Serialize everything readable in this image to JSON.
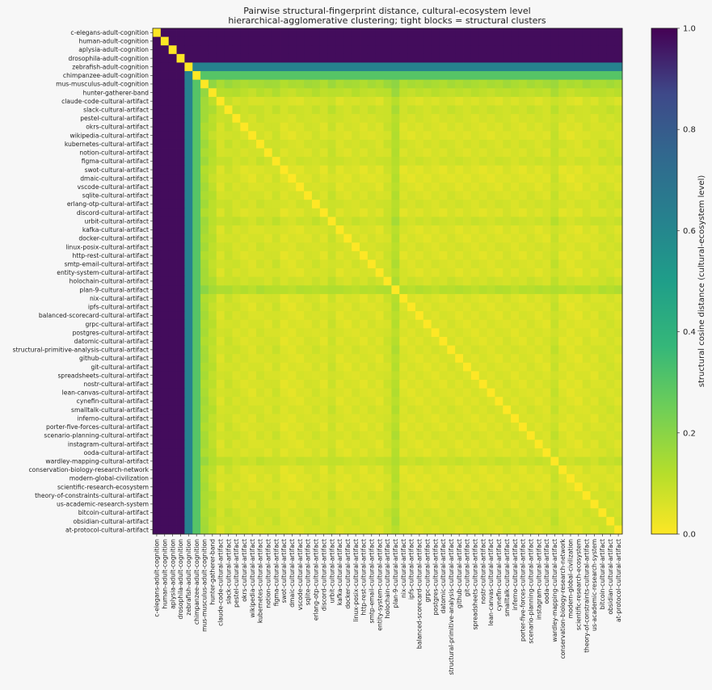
{
  "chart_data": {
    "type": "heatmap",
    "title": "Pairwise structural-fingerprint distance, cultural-ecosystem level",
    "subtitle": "hierarchical-agglomerative clustering; tight blocks = structural clusters",
    "colorbar": {
      "label": "structural cosine distance (cultural-ecosystem level)",
      "range": [
        0.0,
        1.0
      ],
      "ticks": [
        "0.0",
        "0.2",
        "0.4",
        "0.6",
        "0.8",
        "1.0"
      ],
      "colormap": "viridis_r"
    },
    "labels": [
      "c-elegans-adult-cognition",
      "human-adult-cognition",
      "aplysia-adult-cognition",
      "drosophila-adult-cognition",
      "zebrafish-adult-cognition",
      "chimpanzee-adult-cognition",
      "mus-musculus-adult-cognition",
      "hunter-gatherer-band",
      "claude-code-cultural-artifact",
      "slack-cultural-artifact",
      "pestel-cultural-artifact",
      "okrs-cultural-artifact",
      "wikipedia-cultural-artifact",
      "kubernetes-cultural-artifact",
      "notion-cultural-artifact",
      "figma-cultural-artifact",
      "swot-cultural-artifact",
      "dmaic-cultural-artifact",
      "vscode-cultural-artifact",
      "sqlite-cultural-artifact",
      "erlang-otp-cultural-artifact",
      "discord-cultural-artifact",
      "urbit-cultural-artifact",
      "kafka-cultural-artifact",
      "docker-cultural-artifact",
      "linux-posix-cultural-artifact",
      "http-rest-cultural-artifact",
      "smtp-email-cultural-artifact",
      "entity-system-cultural-artifact",
      "holochain-cultural-artifact",
      "plan-9-cultural-artifact",
      "nix-cultural-artifact",
      "ipfs-cultural-artifact",
      "balanced-scorecard-cultural-artifact",
      "grpc-cultural-artifact",
      "postgres-cultural-artifact",
      "datomic-cultural-artifact",
      "structural-primitive-analysis-cultural-artifact",
      "github-cultural-artifact",
      "git-cultural-artifact",
      "spreadsheets-cultural-artifact",
      "nostr-cultural-artifact",
      "lean-canvas-cultural-artifact",
      "cynefin-cultural-artifact",
      "smalltalk-cultural-artifact",
      "inferno-cultural-artifact",
      "porter-five-forces-cultural-artifact",
      "scenario-planning-cultural-artifact",
      "instagram-cultural-artifact",
      "ooda-cultural-artifact",
      "wardley-mapping-cultural-artifact",
      "conservation-biology-research-network",
      "modern-global-civilization",
      "scientific-research-ecosystem",
      "theory-of-constraints-cultural-artifact",
      "us-academic-research-system",
      "bitcoin-cultural-artifact",
      "obsidian-cultural-artifact",
      "at-protocol-cultural-artifact"
    ],
    "row_profile": [
      0.98,
      0.98,
      0.98,
      0.98,
      0.62,
      0.3,
      0.18,
      0.12,
      0.05,
      0.08,
      0.06,
      0.05,
      0.04,
      0.06,
      0.05,
      0.07,
      0.03,
      0.03,
      0.04,
      0.05,
      0.06,
      0.04,
      0.08,
      0.04,
      0.04,
      0.05,
      0.04,
      0.05,
      0.04,
      0.07,
      0.14,
      0.04,
      0.04,
      0.04,
      0.04,
      0.04,
      0.04,
      0.05,
      0.04,
      0.04,
      0.04,
      0.04,
      0.04,
      0.04,
      0.05,
      0.04,
      0.04,
      0.05,
      0.04,
      0.04,
      0.09,
      0.04,
      0.03,
      0.03,
      0.05,
      0.04,
      0.06,
      0.06,
      0.05
    ]
  }
}
